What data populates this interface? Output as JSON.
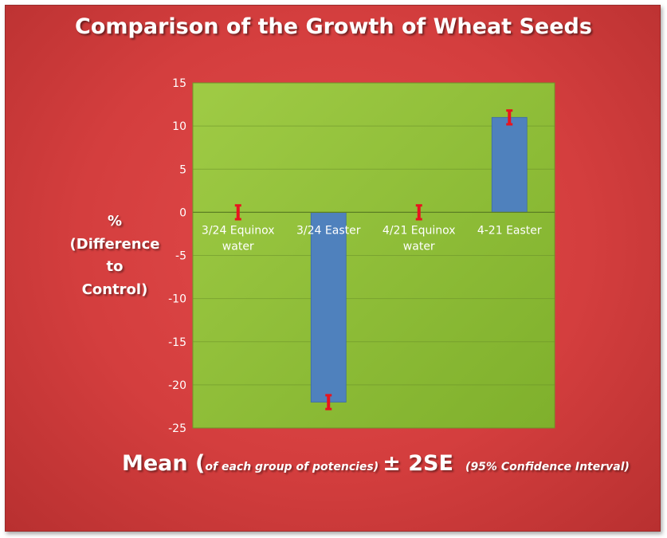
{
  "chart_data": {
    "type": "bar",
    "title": "Comparison of the Growth of Wheat Seeds",
    "ylabel": [
      "%",
      "(Difference",
      "to",
      "Control)"
    ],
    "xlabel": {
      "prefix": "Mean (",
      "italic": "of each group of potencies)",
      "suffix": "± 2SE",
      "note": "(95% Confidence Interval)"
    },
    "categories": [
      [
        "3/24 Equinox",
        "water"
      ],
      [
        "3/24 Easter"
      ],
      [
        "4/21 Equinox",
        "water"
      ],
      [
        "4-21 Easter"
      ]
    ],
    "values": [
      0,
      -22,
      0,
      11
    ],
    "error": [
      0.8,
      0.8,
      0.8,
      0.8
    ],
    "ylim": [
      -25,
      15
    ],
    "yticks": [
      15,
      10,
      5,
      0,
      -5,
      -10,
      -15,
      -20,
      -25
    ],
    "grid": true,
    "legend": "none",
    "colors": {
      "background": "#d43e3e",
      "plot_area": "#92c03a",
      "bar": "#4f81bd",
      "error_bar": "#e8141e",
      "text": "#ffffff"
    }
  }
}
